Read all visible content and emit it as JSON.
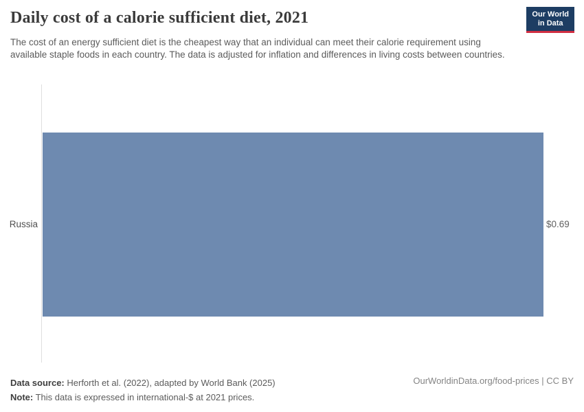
{
  "header": {
    "title": "Daily cost of a calorie sufficient diet, 2021",
    "subtitle": "The cost of an energy sufficient diet is the cheapest way that an individual can meet their calorie requirement using available staple foods in each country. The data is adjusted for inflation and differences in living costs between countries.",
    "logo": {
      "line1": "Our World",
      "line2": "in Data"
    }
  },
  "chart_data": {
    "type": "bar",
    "orientation": "horizontal",
    "title": "Daily cost of a calorie sufficient diet, 2021",
    "categories": [
      "Russia"
    ],
    "values": [
      0.69
    ],
    "value_labels": [
      "$0.69"
    ],
    "unit": "international-$ at 2021 prices",
    "xlabel": "",
    "ylabel": "",
    "xlim": [
      0,
      0.69
    ],
    "grid": false,
    "legend": "none",
    "bar_color": "#6e8ab0",
    "axis_line_color": "#dedede"
  },
  "footer": {
    "data_source_label": "Data source:",
    "data_source_text": "Herforth et al. (2022), adapted by World Bank (2025)",
    "note_label": "Note:",
    "note_text": "This data is expressed in international-$ at 2021 prices.",
    "attribution": "OurWorldinData.org/food-prices | CC BY"
  },
  "colors": {
    "bar": "#6e8ab0",
    "logo_background": "#1d3d63",
    "logo_accent": "#d12e42",
    "title_text": "#3b3b3b",
    "subtitle_text": "#5b5b5b"
  }
}
